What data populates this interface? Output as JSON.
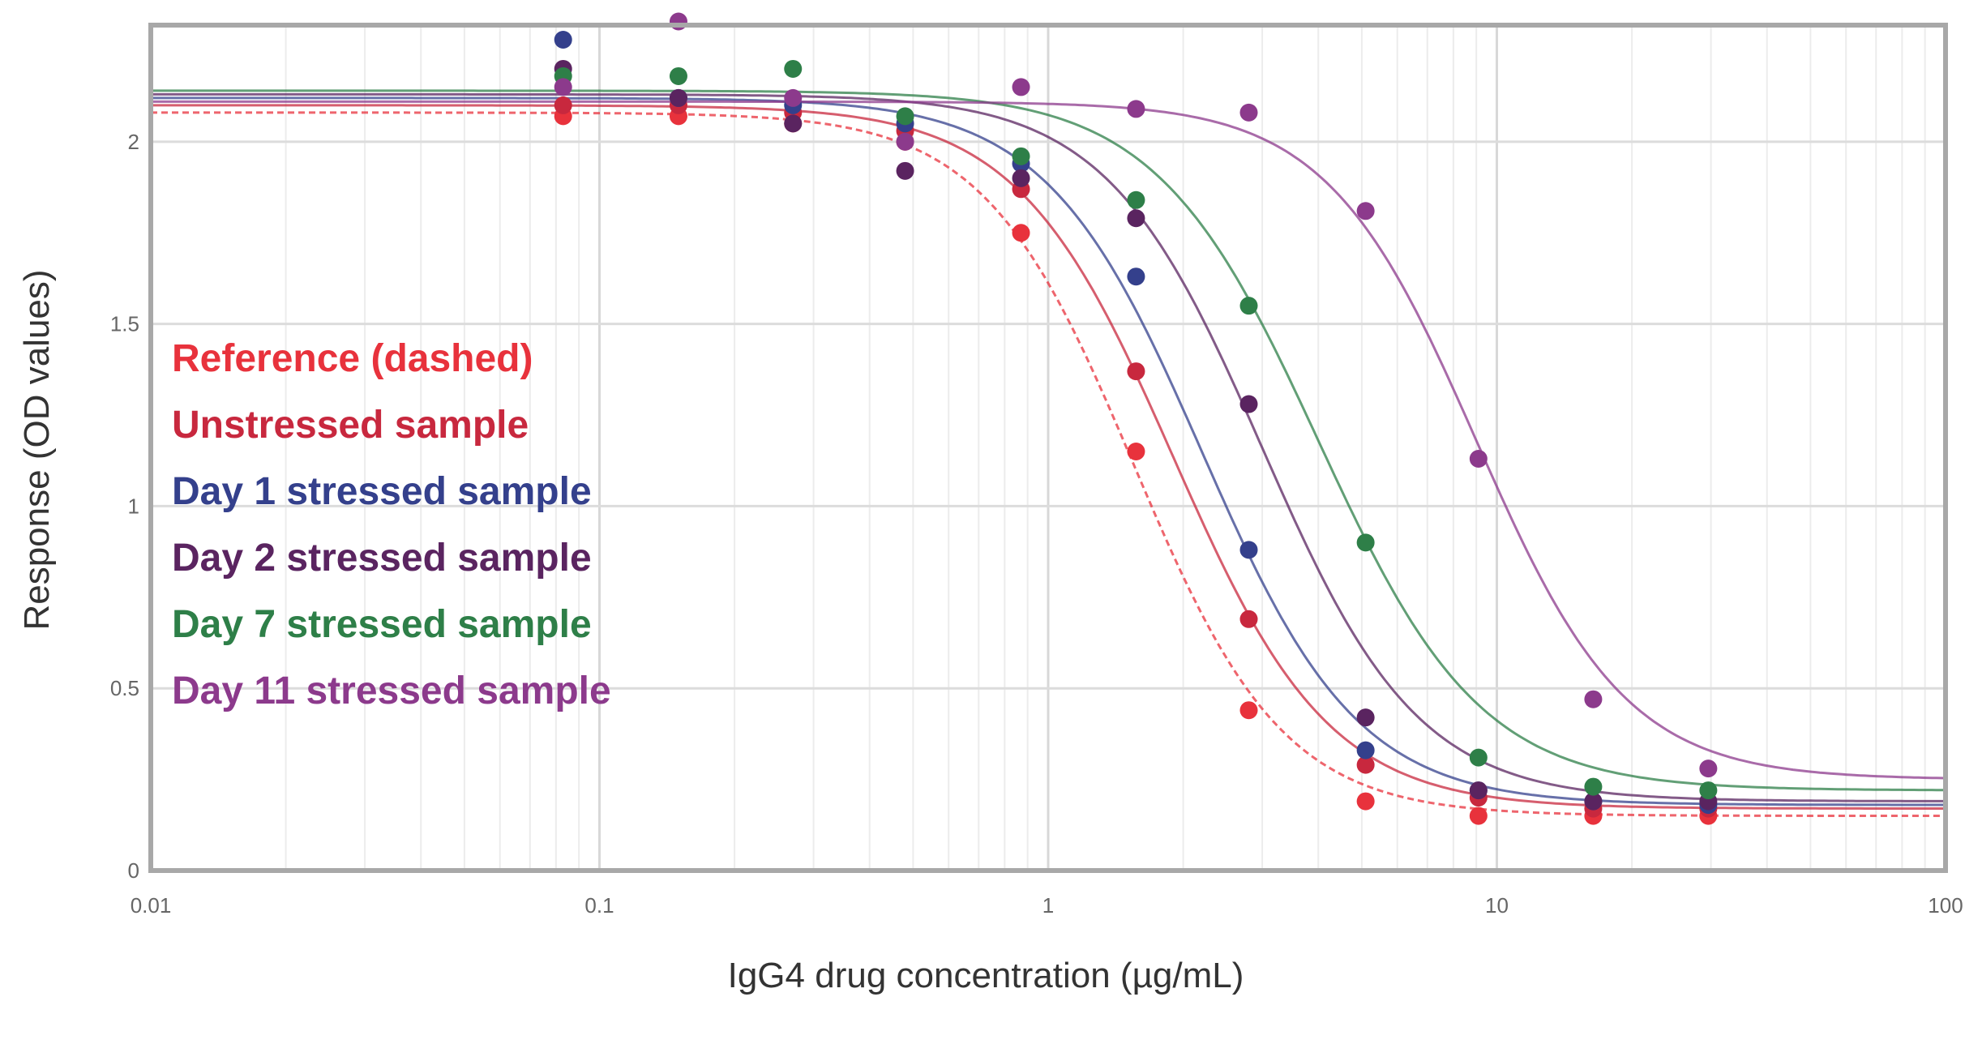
{
  "chart_data": {
    "type": "scatter",
    "title": "",
    "xlabel": "IgG4 drug concentration (µg/mL)",
    "ylabel": "Response (OD values)",
    "xscale": "log",
    "xlim": [
      0.01,
      100
    ],
    "ylim": [
      0,
      2.32
    ],
    "xticks": [
      "0.01",
      "0.1",
      "1",
      "10",
      "100"
    ],
    "yticks": [
      "0",
      "0.5",
      "1",
      "1.5",
      "2"
    ],
    "grid": true,
    "legend_position": "left",
    "x": [
      0.083,
      0.15,
      0.27,
      0.48,
      0.87,
      1.57,
      2.8,
      5.1,
      9.1,
      16.4,
      29.6
    ],
    "series": [
      {
        "name": "Reference (dashed)",
        "color": "#e8323c",
        "dashed": true,
        "values": [
          2.07,
          2.07,
          2.05,
          2.0,
          1.75,
          1.15,
          0.44,
          0.19,
          0.15,
          0.15,
          0.15
        ],
        "fit": {
          "top": 2.08,
          "bottom": 0.15,
          "ec50": 1.55,
          "hill": 2.6
        }
      },
      {
        "name": "Unstressed sample",
        "color": "#c8283e",
        "dashed": false,
        "values": [
          2.1,
          2.1,
          2.08,
          2.03,
          1.87,
          1.37,
          0.69,
          0.29,
          0.2,
          0.17,
          0.17
        ],
        "fit": {
          "top": 2.1,
          "bottom": 0.17,
          "ec50": 1.9,
          "hill": 2.5
        }
      },
      {
        "name": "Day 1 stressed sample",
        "color": "#34408c",
        "dashed": false,
        "values": [
          2.28,
          2.12,
          2.1,
          2.05,
          1.94,
          1.63,
          0.88,
          0.33,
          0.22,
          0.19,
          0.18
        ],
        "fit": {
          "top": 2.12,
          "bottom": 0.18,
          "ec50": 2.2,
          "hill": 2.5
        }
      },
      {
        "name": "Day 2 stressed sample",
        "color": "#5a2460",
        "dashed": false,
        "values": [
          2.2,
          2.12,
          2.05,
          1.92,
          1.9,
          1.79,
          1.28,
          0.42,
          0.22,
          0.19,
          0.19
        ],
        "fit": {
          "top": 2.13,
          "bottom": 0.19,
          "ec50": 3.0,
          "hill": 2.5
        }
      },
      {
        "name": "Day 7 stressed sample",
        "color": "#2e7f48",
        "dashed": false,
        "values": [
          2.18,
          2.18,
          2.2,
          2.07,
          1.96,
          1.84,
          1.55,
          0.9,
          0.31,
          0.23,
          0.22
        ],
        "fit": {
          "top": 2.14,
          "bottom": 0.22,
          "ec50": 4.0,
          "hill": 2.4
        }
      },
      {
        "name": "Day 11 stressed sample",
        "color": "#8c3a8c",
        "dashed": false,
        "values": [
          2.15,
          2.33,
          2.12,
          2.0,
          2.15,
          2.09,
          2.08,
          1.81,
          1.13,
          0.47,
          0.28
        ],
        "fit": {
          "top": 2.11,
          "bottom": 0.25,
          "ec50": 9.0,
          "hill": 2.6
        }
      }
    ]
  }
}
